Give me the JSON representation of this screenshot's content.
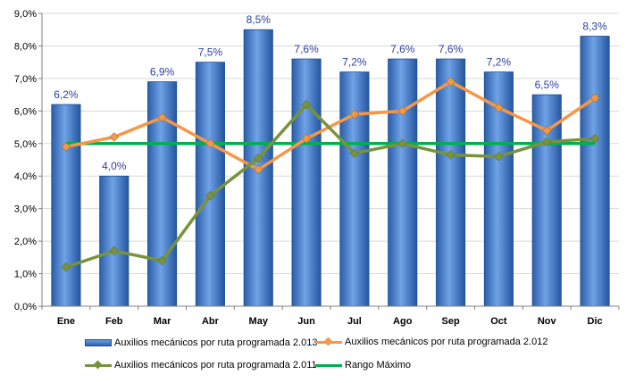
{
  "chart_data": {
    "type": "bar",
    "categories": [
      "Ene",
      "Feb",
      "Mar",
      "Abr",
      "May",
      "Jun",
      "Jul",
      "Ago",
      "Sep",
      "Oct",
      "Nov",
      "Dic"
    ],
    "ylim": [
      0,
      9
    ],
    "yticks": [
      "0,0%",
      "1,0%",
      "2,0%",
      "3,0%",
      "4,0%",
      "5,0%",
      "6,0%",
      "7,0%",
      "8,0%",
      "9,0%"
    ],
    "grid": true,
    "legend_position": "bottom",
    "series": [
      {
        "name": "Auxilios mecánicos por ruta programada 2.013",
        "type": "bar",
        "values": [
          6.2,
          4.0,
          6.9,
          7.5,
          8.5,
          7.6,
          7.2,
          7.6,
          7.6,
          7.2,
          6.5,
          8.3
        ],
        "labels": [
          "6,2%",
          "4,0%",
          "6,9%",
          "7,5%",
          "8,5%",
          "7,6%",
          "7,2%",
          "7,6%",
          "7,6%",
          "7,2%",
          "6,5%",
          "8,3%"
        ]
      },
      {
        "name": "Auxilios mecánicos por ruta programada 2.012",
        "type": "line",
        "values": [
          4.9,
          5.2,
          5.8,
          5.0,
          4.2,
          5.15,
          5.9,
          6.0,
          6.9,
          6.1,
          5.4,
          6.4
        ]
      },
      {
        "name": "Auxilios mecánicos por ruta programada 2.011",
        "type": "line",
        "values": [
          1.2,
          1.7,
          1.4,
          3.4,
          4.55,
          6.2,
          4.7,
          5.0,
          4.65,
          4.6,
          5.05,
          5.15
        ]
      },
      {
        "name": "Rango Máximo",
        "type": "line",
        "values": [
          5.0,
          5.0,
          5.0,
          5.0,
          5.0,
          5.0,
          5.0,
          5.0,
          5.0,
          5.0,
          5.0,
          5.0
        ]
      }
    ],
    "colors": {
      "bar": "#3a74c4",
      "bar_label": "#2e3fa0",
      "line2012": "#f79646",
      "line2011": "#77933c",
      "range": "#00b050",
      "grid": "#d9d9d9",
      "axis": "#808080"
    }
  }
}
